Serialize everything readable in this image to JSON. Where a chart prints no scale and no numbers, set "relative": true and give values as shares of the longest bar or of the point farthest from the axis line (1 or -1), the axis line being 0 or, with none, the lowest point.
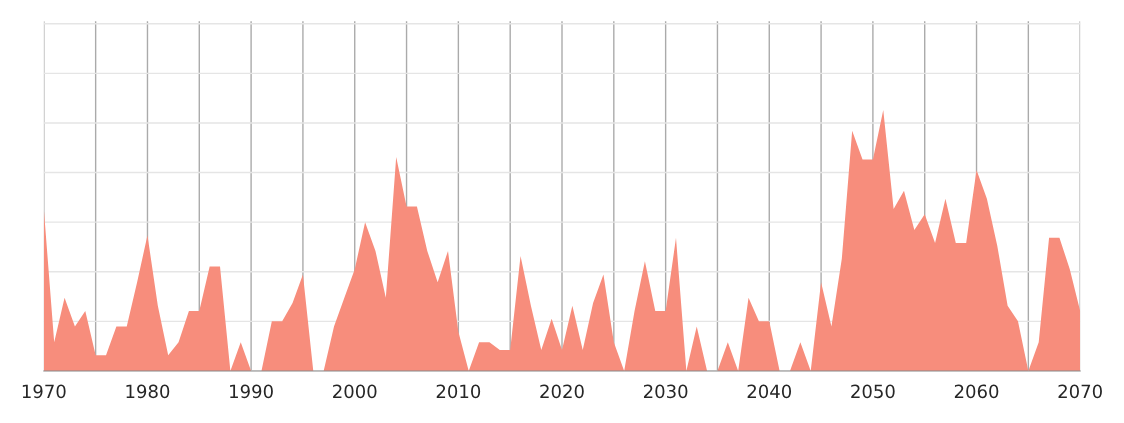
{
  "chart_data": {
    "type": "area",
    "relative": true,
    "grid": true,
    "x": [
      1970,
      1971,
      1972,
      1973,
      1974,
      1975,
      1976,
      1977,
      1978,
      1979,
      1980,
      1981,
      1982,
      1983,
      1984,
      1985,
      1986,
      1987,
      1988,
      1989,
      1990,
      1991,
      1992,
      1993,
      1994,
      1995,
      1996,
      1997,
      1998,
      1999,
      2000,
      2001,
      2002,
      2003,
      2004,
      2005,
      2006,
      2007,
      2008,
      2009,
      2010,
      2011,
      2012,
      2013,
      2014,
      2015,
      2016,
      2017,
      2018,
      2019,
      2020,
      2021,
      2022,
      2023,
      2024,
      2025,
      2026,
      2027,
      2028,
      2029,
      2030,
      2031,
      2032,
      2033,
      2034,
      2035,
      2036,
      2037,
      2038,
      2039,
      2040,
      2041,
      2042,
      2043,
      2044,
      2045,
      2046,
      2047,
      2048,
      2049,
      2050,
      2051,
      2052,
      2053,
      2054,
      2055,
      2056,
      2057,
      2058,
      2059,
      2060,
      2061,
      2062,
      2063,
      2064,
      2065,
      2066,
      2067,
      2068,
      2069,
      2070
    ],
    "series": [
      {
        "color": "#f78d7c",
        "values": [
          0.62,
          0.11,
          0.28,
          0.17,
          0.23,
          0.06,
          0.06,
          0.17,
          0.17,
          0.34,
          0.52,
          0.25,
          0.06,
          0.11,
          0.23,
          0.23,
          0.4,
          0.4,
          0,
          0.11,
          0,
          0,
          0.19,
          0.19,
          0.26,
          0.37,
          0,
          0,
          0.17,
          0.28,
          0.39,
          0.57,
          0.46,
          0.28,
          0.82,
          0.63,
          0.63,
          0.46,
          0.34,
          0.46,
          0.15,
          0,
          0.11,
          0.11,
          0.08,
          0.08,
          0.44,
          0.25,
          0.08,
          0.2,
          0.08,
          0.25,
          0.08,
          0.26,
          0.37,
          0.11,
          0,
          0.23,
          0.42,
          0.23,
          0.23,
          0.51,
          0,
          0.17,
          0,
          0,
          0.11,
          0,
          0.28,
          0.19,
          0.19,
          0,
          0,
          0.11,
          0,
          0.34,
          0.17,
          0.43,
          0.92,
          0.81,
          0.81,
          1,
          0.62,
          0.69,
          0.54,
          0.6,
          0.49,
          0.66,
          0.49,
          0.49,
          0.77,
          0.66,
          0.48,
          0.25,
          0.19,
          0,
          0.11,
          0.51,
          0.51,
          0.39,
          0.23
        ]
      }
    ],
    "xlim": [
      1970,
      2070
    ],
    "xticks": [
      1970,
      {
        "value": 1975,
        "label": null
      },
      1980,
      {
        "value": 1985,
        "label": null
      },
      1990,
      {
        "value": 1995,
        "label": null
      },
      2000,
      {
        "value": 2005,
        "label": null
      },
      2010,
      {
        "value": 2015,
        "label": null
      },
      2020,
      {
        "value": 2025,
        "label": null
      },
      2030,
      {
        "value": 2035,
        "label": null
      },
      2040,
      {
        "value": 2045,
        "label": null
      },
      2050,
      {
        "value": 2055,
        "label": null
      },
      2060,
      {
        "value": 2065,
        "label": null
      },
      2070
    ]
  }
}
